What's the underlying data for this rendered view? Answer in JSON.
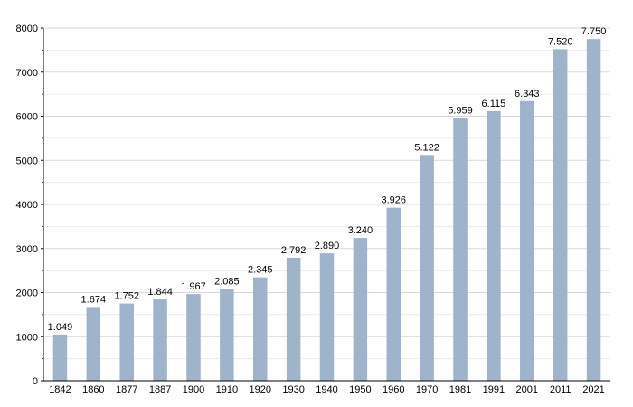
{
  "chart_data": {
    "type": "bar",
    "categories": [
      "1842",
      "1860",
      "1877",
      "1887",
      "1900",
      "1910",
      "1920",
      "1930",
      "1940",
      "1950",
      "1960",
      "1970",
      "1981",
      "1991",
      "2001",
      "2011",
      "2021"
    ],
    "values": [
      1049,
      1674,
      1752,
      1844,
      1967,
      2085,
      2345,
      2792,
      2890,
      3240,
      3926,
      5122,
      5959,
      6115,
      6343,
      7520,
      7750
    ],
    "value_labels": [
      "1.049",
      "1.674",
      "1.752",
      "1.844",
      "1.967",
      "2.085",
      "2.345",
      "2.792",
      "2.890",
      "3.240",
      "3.926",
      "5.122",
      "5.959",
      "6.115",
      "6.343",
      "7.520",
      "7.750"
    ],
    "title": "",
    "xlabel": "",
    "ylabel": "",
    "ylim": [
      0,
      8000
    ],
    "yticks": [
      "0",
      "1000",
      "2000",
      "3000",
      "4000",
      "5000",
      "6000",
      "7000",
      "8000"
    ],
    "grid": true,
    "bar_color": "#9fb3cb",
    "grid_color": "#d9d9d9"
  }
}
